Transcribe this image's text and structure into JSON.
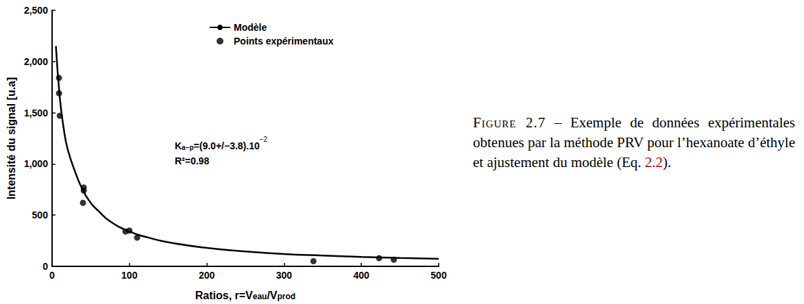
{
  "chart_data": {
    "type": "scatter",
    "x_label": [
      {
        "text": "Ratios, r=V"
      },
      {
        "text": "eau",
        "sub": true
      },
      {
        "text": "/V"
      },
      {
        "text": "prod",
        "sub": true
      }
    ],
    "y_label": "Intensité du signal [u.a]",
    "xlim": [
      0,
      500
    ],
    "xticks": [
      0,
      100,
      200,
      300,
      400,
      500
    ],
    "ylim": [
      0,
      2500
    ],
    "yticks": [
      0,
      500,
      1000,
      1500,
      2000,
      2500
    ],
    "grid": false,
    "legend": "top",
    "series": [
      {
        "name": "Modèle",
        "type": "line",
        "color": "#000000",
        "line_style": "solid",
        "x": [
          5,
          10,
          15,
          20,
          30,
          40,
          50,
          60,
          75,
          100,
          125,
          150,
          200,
          250,
          300,
          350,
          400,
          450,
          500
        ],
        "values": [
          2150,
          1650,
          1350,
          1150,
          920,
          740,
          620,
          540,
          440,
          340,
          280,
          235,
          180,
          145,
          120,
          105,
          92,
          82,
          74
        ]
      },
      {
        "name": "Points expérimentaux",
        "type": "scatter",
        "color": "#000000",
        "marker": "circle",
        "x": [
          9,
          9,
          10,
          41,
          41,
          40,
          95,
          100,
          110,
          338,
          423,
          442
        ],
        "values": [
          1840,
          1690,
          1470,
          770,
          740,
          620,
          340,
          350,
          280,
          50,
          80,
          65
        ]
      }
    ],
    "annotations": [
      [
        {
          "text": "K"
        },
        {
          "text": "a−p",
          "sub": true
        },
        {
          "text": "=(9.0+/−3.8).10"
        },
        {
          "text": "−2",
          "sup": true
        }
      ],
      [
        {
          "text": "R²=0.98"
        }
      ]
    ],
    "caption": [
      {
        "text": "Figure 2.7",
        "style": "label"
      },
      {
        "text": " – Exemple de données expérimentales obtenues par la méthode PRV pour l’hexanoate d’éthyle et ajustement du modèle (Eq. "
      },
      {
        "text": "2.2",
        "style": "ref"
      },
      {
        "text": ")."
      }
    ]
  }
}
